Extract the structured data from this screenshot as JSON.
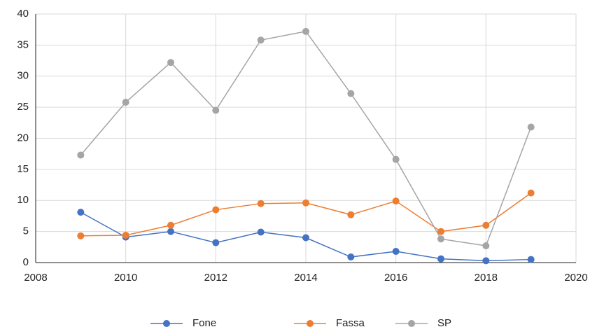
{
  "chart_data": {
    "type": "line",
    "x": [
      2009,
      2010,
      2011,
      2012,
      2013,
      2014,
      2015,
      2016,
      2017,
      2018,
      2019
    ],
    "series": [
      {
        "name": "Fone",
        "color": "#4472c4",
        "values": [
          8.1,
          4.1,
          5.0,
          3.2,
          4.9,
          4.0,
          0.9,
          1.8,
          0.6,
          0.3,
          0.5
        ]
      },
      {
        "name": "Fassa",
        "color": "#ed7d31",
        "values": [
          4.3,
          4.4,
          6.0,
          8.5,
          9.5,
          9.6,
          7.7,
          9.9,
          5.0,
          6.0,
          11.2
        ]
      },
      {
        "name": "SP",
        "color": "#a5a5a5",
        "values": [
          17.3,
          25.8,
          32.2,
          24.5,
          35.8,
          37.2,
          27.2,
          16.6,
          3.8,
          2.7,
          21.8
        ]
      }
    ],
    "xlim": [
      2008,
      2020
    ],
    "xticks": [
      2008,
      2010,
      2012,
      2014,
      2016,
      2018,
      2020
    ],
    "ylim": [
      0,
      40
    ],
    "yticks": [
      0,
      5,
      10,
      15,
      20,
      25,
      30,
      35,
      40
    ],
    "grid": true,
    "legend": "bottom"
  }
}
